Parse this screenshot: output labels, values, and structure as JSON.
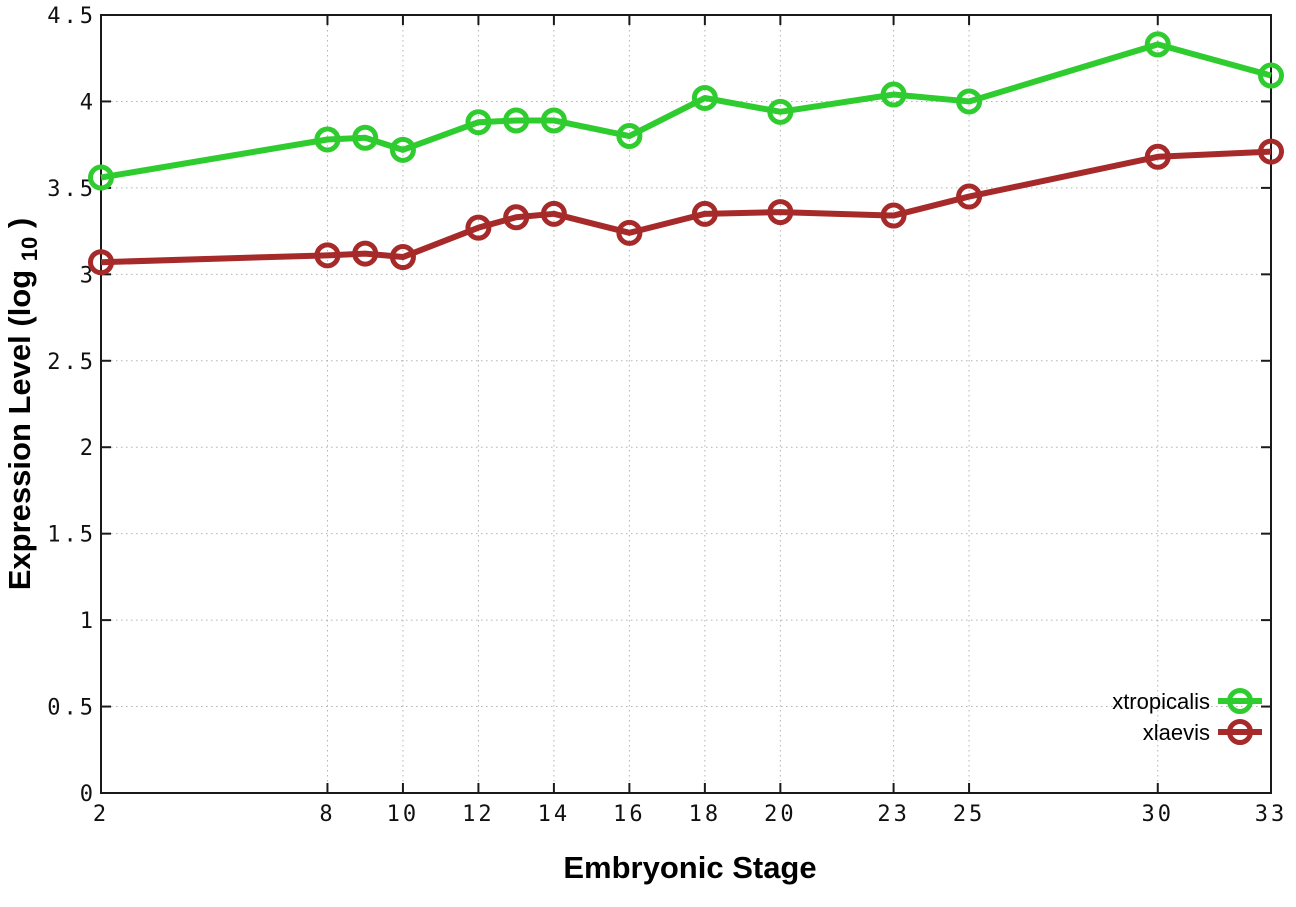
{
  "chart_data": {
    "type": "line",
    "title": "",
    "xlabel": "Embryonic Stage",
    "ylabel": "Expression Level (log10)",
    "xlim": [
      2,
      33
    ],
    "ylim": [
      0,
      4.5
    ],
    "grid": true,
    "marker": "open-circle",
    "legend_position": "inside-bottom-right",
    "x_ticks": [
      2,
      8,
      10,
      12,
      14,
      16,
      18,
      20,
      23,
      25,
      30,
      33
    ],
    "x_tick_labels": [
      "2",
      "8",
      "10",
      "12",
      "14",
      "16",
      "18",
      "20",
      "23",
      "25",
      "30",
      "33"
    ],
    "y_ticks": [
      0,
      0.5,
      1,
      1.5,
      2,
      2.5,
      3,
      3.5,
      4,
      4.5
    ],
    "y_tick_labels": [
      "0",
      "0.5",
      "1",
      "1.5",
      "2",
      "2.5",
      "3",
      "3.5",
      "4",
      "4.5"
    ],
    "x": [
      2,
      8,
      9,
      10,
      12,
      13,
      14,
      16,
      18,
      20,
      23,
      25,
      30,
      33
    ],
    "series": [
      {
        "name": "xtropicalis",
        "color": "#2fcc2f",
        "values": [
          3.56,
          3.78,
          3.79,
          3.72,
          3.88,
          3.89,
          3.89,
          3.8,
          4.02,
          3.94,
          4.04,
          4.0,
          4.33,
          4.15
        ]
      },
      {
        "name": "xlaevis",
        "color": "#a62a2a",
        "values": [
          3.07,
          3.11,
          3.12,
          3.1,
          3.27,
          3.33,
          3.35,
          3.24,
          3.35,
          3.36,
          3.34,
          3.45,
          3.68,
          3.71
        ]
      }
    ]
  },
  "labels": {
    "xlabel": "Embryonic Stage",
    "ylabel_main": "Expression Level (log",
    "ylabel_sub": "10",
    "ylabel_close": ")"
  },
  "colors": {
    "background": "#ffffff",
    "axis": "#1a1a1a",
    "grid": "#b3b3b3",
    "text": "#000000"
  }
}
